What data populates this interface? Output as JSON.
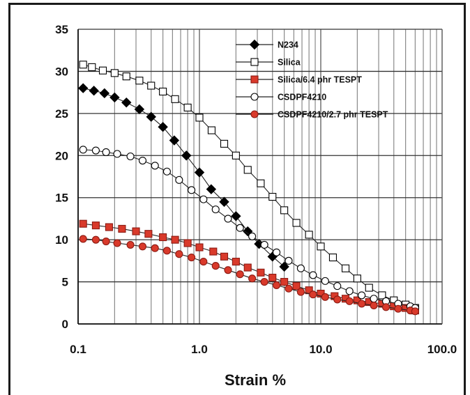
{
  "chart_data": {
    "type": "line",
    "xscale": "log",
    "xlim": [
      0.1,
      100
    ],
    "ylim": [
      0,
      35
    ],
    "yticks": [
      0,
      5,
      10,
      15,
      20,
      25,
      30,
      35
    ],
    "xticks": [
      {
        "value": 0.1,
        "label": "0.1"
      },
      {
        "value": 1,
        "label": "1.0"
      },
      {
        "value": 10,
        "label": "10.0"
      },
      {
        "value": 100,
        "label": "100.0"
      }
    ],
    "xlabel": "Strain %",
    "ylabel": "",
    "grid": true,
    "legend_position": "top-right",
    "series": [
      {
        "name": "N234",
        "marker": "diamond",
        "fill": "#000000",
        "stroke": "#000000",
        "x": [
          0.11,
          0.135,
          0.165,
          0.2,
          0.25,
          0.32,
          0.4,
          0.5,
          0.62,
          0.78,
          1.0,
          1.25,
          1.6,
          2.0,
          2.5,
          3.1,
          4.0,
          5.0
        ],
        "y": [
          28.0,
          27.7,
          27.4,
          26.9,
          26.3,
          25.5,
          24.6,
          23.4,
          21.8,
          20.0,
          18.0,
          16.0,
          14.5,
          12.8,
          11.0,
          9.5,
          8.0,
          6.8
        ]
      },
      {
        "name": "Silica",
        "marker": "square",
        "fill": "#ffffff",
        "stroke": "#000000",
        "x": [
          0.11,
          0.13,
          0.16,
          0.2,
          0.25,
          0.32,
          0.4,
          0.5,
          0.63,
          0.8,
          1.0,
          1.26,
          1.6,
          2.0,
          2.5,
          3.2,
          4.0,
          5.0,
          6.3,
          8.0,
          10.0,
          12.6,
          16.0,
          20.0,
          25.0,
          32.0,
          40.0,
          50.0,
          60.0
        ],
        "y": [
          30.8,
          30.5,
          30.1,
          29.8,
          29.4,
          28.9,
          28.3,
          27.6,
          26.7,
          25.7,
          24.5,
          23.0,
          21.4,
          20.0,
          18.3,
          16.7,
          15.1,
          13.5,
          12.0,
          10.6,
          9.2,
          7.9,
          6.6,
          5.4,
          4.3,
          3.4,
          2.8,
          2.3,
          1.9
        ]
      },
      {
        "name": "Silica/6.4 phr TESPT",
        "marker": "square",
        "fill": "#d93a2b",
        "stroke": "#8b1a12",
        "x": [
          0.11,
          0.14,
          0.18,
          0.23,
          0.3,
          0.38,
          0.5,
          0.63,
          0.8,
          1.0,
          1.3,
          1.6,
          2.0,
          2.5,
          3.2,
          4.0,
          5.0,
          6.3,
          8.0,
          10.0,
          13.0,
          16.0,
          20.0,
          25.0,
          32.0,
          40.0,
          50.0,
          60.0
        ],
        "y": [
          11.9,
          11.7,
          11.5,
          11.3,
          11.0,
          10.7,
          10.3,
          10.0,
          9.6,
          9.1,
          8.6,
          8.0,
          7.4,
          6.7,
          6.1,
          5.5,
          5.0,
          4.5,
          4.0,
          3.6,
          3.3,
          3.0,
          2.8,
          2.6,
          2.4,
          2.1,
          1.9,
          1.6
        ]
      },
      {
        "name": "CSDPF4210",
        "marker": "circle",
        "fill": "#ffffff",
        "stroke": "#000000",
        "x": [
          0.11,
          0.14,
          0.17,
          0.21,
          0.27,
          0.34,
          0.43,
          0.54,
          0.68,
          0.86,
          1.08,
          1.36,
          1.72,
          2.16,
          2.72,
          3.43,
          4.32,
          5.44,
          6.85,
          8.63,
          10.87,
          13.69,
          17.25,
          21.73,
          27.37,
          34.48,
          43.43,
          54.71,
          60.0
        ],
        "y": [
          20.7,
          20.6,
          20.4,
          20.2,
          19.9,
          19.4,
          18.8,
          18.1,
          17.1,
          15.9,
          14.8,
          13.6,
          12.5,
          11.4,
          10.4,
          9.4,
          8.5,
          7.5,
          6.6,
          5.8,
          5.1,
          4.5,
          3.9,
          3.4,
          3.0,
          2.7,
          2.4,
          2.1,
          1.9
        ]
      },
      {
        "name": "CSDPF4210/2.7 phr TESPT",
        "marker": "circle",
        "fill": "#d93a2b",
        "stroke": "#8b1a12",
        "x": [
          0.11,
          0.14,
          0.17,
          0.21,
          0.27,
          0.34,
          0.43,
          0.54,
          0.68,
          0.86,
          1.08,
          1.36,
          1.72,
          2.16,
          2.72,
          3.43,
          4.32,
          5.44,
          6.85,
          8.63,
          10.87,
          13.69,
          17.25,
          21.73,
          27.37,
          34.48,
          43.43,
          54.71,
          60.0
        ],
        "y": [
          10.1,
          10.0,
          9.8,
          9.6,
          9.4,
          9.2,
          9.0,
          8.7,
          8.3,
          7.9,
          7.4,
          6.9,
          6.4,
          5.9,
          5.4,
          5.0,
          4.6,
          4.2,
          3.8,
          3.5,
          3.2,
          2.9,
          2.7,
          2.4,
          2.2,
          2.0,
          1.8,
          1.6,
          1.5
        ]
      }
    ]
  }
}
